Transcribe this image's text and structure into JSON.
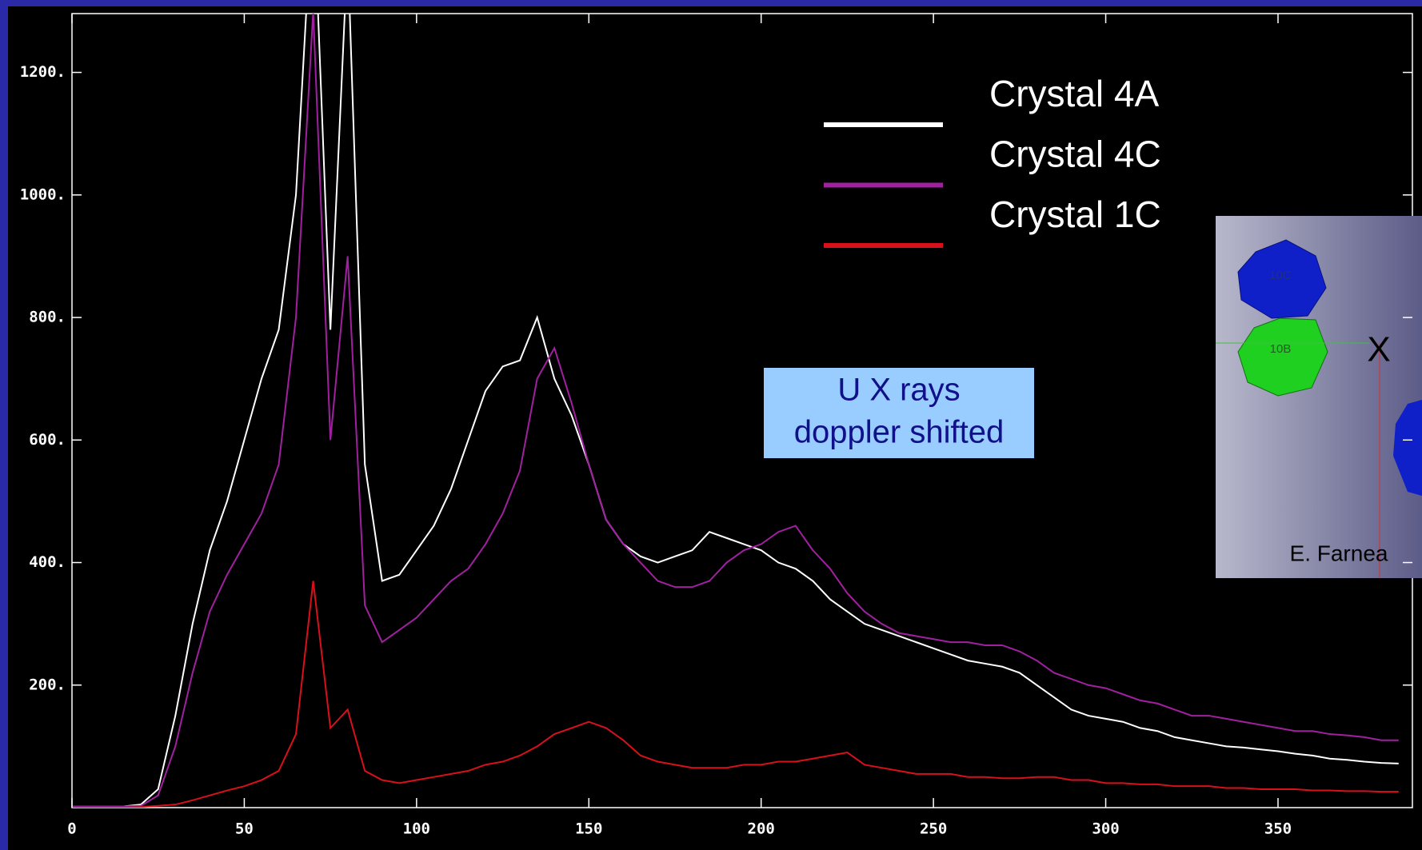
{
  "chart_data": {
    "type": "line",
    "step": true,
    "x": [
      0,
      5,
      10,
      15,
      20,
      25,
      30,
      35,
      40,
      45,
      50,
      55,
      60,
      65,
      70,
      75,
      80,
      85,
      90,
      95,
      100,
      105,
      110,
      115,
      120,
      125,
      130,
      135,
      140,
      145,
      150,
      155,
      160,
      165,
      170,
      175,
      180,
      185,
      190,
      195,
      200,
      205,
      210,
      215,
      220,
      225,
      230,
      235,
      240,
      245,
      250,
      255,
      260,
      265,
      270,
      275,
      280,
      285,
      290,
      295,
      300,
      305,
      310,
      315,
      320,
      325,
      330,
      335,
      340,
      345,
      350,
      355,
      360,
      365,
      370,
      375,
      380,
      385
    ],
    "series": [
      {
        "name": "Crystal 4A",
        "color": "#ffffff",
        "values": [
          2,
          2,
          2,
          2,
          5,
          30,
          150,
          300,
          420,
          500,
          600,
          700,
          780,
          1000,
          1500,
          780,
          1400,
          560,
          370,
          380,
          420,
          460,
          520,
          600,
          680,
          720,
          730,
          800,
          700,
          640,
          560,
          470,
          430,
          410,
          400,
          410,
          420,
          450,
          440,
          430,
          420,
          400,
          390,
          370,
          340,
          320,
          300,
          290,
          280,
          270,
          260,
          250,
          240,
          235,
          230,
          220,
          200,
          180,
          160,
          150,
          145,
          140,
          130,
          125,
          115,
          110,
          105,
          100,
          98,
          95,
          92,
          88,
          85,
          80,
          78,
          75,
          73,
          72
        ]
      },
      {
        "name": "Crystal 4C",
        "color": "#a020a0",
        "values": [
          2,
          2,
          2,
          2,
          3,
          20,
          100,
          220,
          320,
          380,
          430,
          480,
          560,
          800,
          1300,
          600,
          900,
          330,
          270,
          290,
          310,
          340,
          370,
          390,
          430,
          480,
          550,
          700,
          750,
          660,
          560,
          470,
          430,
          400,
          370,
          360,
          360,
          370,
          400,
          420,
          430,
          450,
          460,
          420,
          390,
          350,
          320,
          300,
          285,
          280,
          275,
          270,
          270,
          265,
          265,
          255,
          240,
          220,
          210,
          200,
          195,
          185,
          175,
          170,
          160,
          150,
          150,
          145,
          140,
          135,
          130,
          125,
          125,
          120,
          118,
          115,
          110,
          110
        ]
      },
      {
        "name": "Crystal 1C",
        "color": "#d8101c",
        "values": [
          0,
          0,
          0,
          0,
          1,
          3,
          5,
          12,
          20,
          28,
          35,
          45,
          60,
          120,
          370,
          130,
          160,
          60,
          45,
          40,
          45,
          50,
          55,
          60,
          70,
          75,
          85,
          100,
          120,
          130,
          140,
          130,
          110,
          85,
          75,
          70,
          65,
          65,
          65,
          70,
          70,
          75,
          75,
          80,
          85,
          90,
          70,
          65,
          60,
          55,
          55,
          55,
          50,
          50,
          48,
          48,
          50,
          50,
          45,
          45,
          40,
          40,
          38,
          38,
          35,
          35,
          35,
          32,
          32,
          30,
          30,
          30,
          28,
          28,
          27,
          27,
          26,
          26
        ]
      }
    ],
    "xlim": [
      0,
      389
    ],
    "ylim": [
      0,
      1296
    ],
    "xticks": [
      0,
      50,
      100,
      150,
      200,
      250,
      300,
      350
    ],
    "yticks": [
      {
        "value": 200,
        "label": "200."
      },
      {
        "value": 400,
        "label": "400."
      },
      {
        "value": 600,
        "label": "600."
      },
      {
        "value": 800,
        "label": "800."
      },
      {
        "value": 1000,
        "label": "1000."
      },
      {
        "value": 1200,
        "label": "1200."
      }
    ],
    "annotation": [
      "U X rays",
      "doppler shifted"
    ],
    "inset": {
      "labels": [
        "10C",
        "10B",
        "X"
      ],
      "credit": "E. Farnea"
    }
  }
}
